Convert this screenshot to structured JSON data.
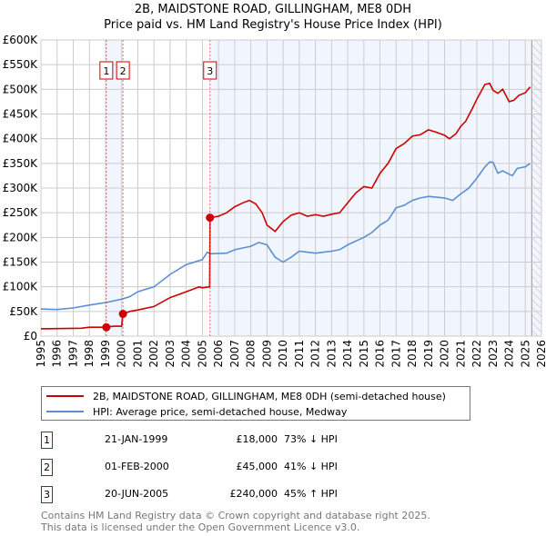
{
  "chart_data": {
    "type": "line",
    "title": "2B, MAIDSTONE ROAD, GILLINGHAM, ME8 0DH",
    "subtitle": "Price paid vs. HM Land Registry's House Price Index (HPI)",
    "xlim": [
      1995,
      2026
    ],
    "ylim": [
      0,
      600000
    ],
    "x_ticks": [
      "1995",
      "1996",
      "1997",
      "1998",
      "1999",
      "2000",
      "2001",
      "2002",
      "2003",
      "2004",
      "2005",
      "2006",
      "2007",
      "2008",
      "2009",
      "2010",
      "2011",
      "2012",
      "2013",
      "2014",
      "2015",
      "2016",
      "2017",
      "2018",
      "2019",
      "2020",
      "2021",
      "2022",
      "2023",
      "2024",
      "2025",
      "2026"
    ],
    "y_ticks": [
      {
        "v": 0,
        "l": "£0"
      },
      {
        "v": 50000,
        "l": "£50K"
      },
      {
        "v": 100000,
        "l": "£100K"
      },
      {
        "v": 150000,
        "l": "£150K"
      },
      {
        "v": 200000,
        "l": "£200K"
      },
      {
        "v": 250000,
        "l": "£250K"
      },
      {
        "v": 300000,
        "l": "£300K"
      },
      {
        "v": 350000,
        "l": "£350K"
      },
      {
        "v": 400000,
        "l": "£400K"
      },
      {
        "v": 450000,
        "l": "£450K"
      },
      {
        "v": 500000,
        "l": "£500K"
      },
      {
        "v": 550000,
        "l": "£550K"
      },
      {
        "v": 600000,
        "l": "£600K"
      }
    ],
    "grid": true,
    "series": [
      {
        "name": "2B, MAIDSTONE ROAD, GILLINGHAM, ME8 0DH (semi-detached house)",
        "color": "#cc0000",
        "x": [
          1995,
          1997.5,
          1998,
          1999.05,
          1999.5,
          2000,
          2000.08,
          2000.5,
          2001,
          2002,
          2003,
          2004,
          2004.8,
          2005,
          2005.45,
          2005.47,
          2006,
          2006.5,
          2007,
          2007.5,
          2007.9,
          2008.3,
          2008.7,
          2009,
          2009.5,
          2010,
          2010.5,
          2011,
          2011.5,
          2012,
          2012.5,
          2013,
          2013.5,
          2014,
          2014.5,
          2015,
          2015.5,
          2016,
          2016.5,
          2017,
          2017.5,
          2018,
          2018.5,
          2019,
          2019.5,
          2020,
          2020.3,
          2020.7,
          2021,
          2021.3,
          2021.7,
          2022,
          2022.5,
          2022.8,
          2023,
          2023.3,
          2023.6,
          2024,
          2024.3,
          2024.6,
          2025,
          2025.3
        ],
        "y": [
          15000,
          16000,
          18000,
          18000,
          20000,
          20000,
          45000,
          50000,
          53000,
          60000,
          78000,
          90000,
          100000,
          98000,
          100000,
          240000,
          243000,
          250000,
          262000,
          270000,
          275000,
          268000,
          250000,
          225000,
          212000,
          232000,
          245000,
          250000,
          243000,
          246000,
          243000,
          247000,
          250000,
          270000,
          290000,
          303000,
          300000,
          330000,
          350000,
          380000,
          390000,
          405000,
          408000,
          418000,
          413000,
          407000,
          400000,
          410000,
          425000,
          435000,
          460000,
          480000,
          510000,
          512000,
          498000,
          492000,
          500000,
          475000,
          478000,
          488000,
          493000,
          505000
        ]
      },
      {
        "name": "HPI: Average price, semi-detached house, Medway",
        "color": "#5b8fd4",
        "x": [
          1995,
          1996,
          1997,
          1998,
          1999,
          2000,
          2000.5,
          2001,
          2002,
          2003,
          2004,
          2005,
          2005.3,
          2005.5,
          2006.5,
          2007,
          2008,
          2008.5,
          2009,
          2009.5,
          2010,
          2010.5,
          2011,
          2011.5,
          2012,
          2012.5,
          2013,
          2013.5,
          2014,
          2015,
          2015.5,
          2016,
          2016.5,
          2017,
          2017.5,
          2018,
          2018.5,
          2019,
          2020,
          2020.5,
          2021,
          2021.5,
          2022,
          2022.5,
          2022.8,
          2023,
          2023.3,
          2023.6,
          2024,
          2024.2,
          2024.5,
          2025,
          2025.3
        ],
        "y": [
          55000,
          54000,
          57000,
          63000,
          68000,
          75000,
          80000,
          90000,
          100000,
          125000,
          145000,
          155000,
          170000,
          167000,
          168000,
          175000,
          182000,
          190000,
          185000,
          160000,
          150000,
          160000,
          172000,
          170000,
          168000,
          170000,
          172000,
          175000,
          185000,
          200000,
          210000,
          225000,
          235000,
          260000,
          265000,
          275000,
          280000,
          283000,
          280000,
          275000,
          288000,
          300000,
          320000,
          343000,
          353000,
          352000,
          330000,
          335000,
          328000,
          325000,
          340000,
          343000,
          350000
        ]
      }
    ],
    "sales": [
      {
        "n": "1",
        "x": 1999.05,
        "y": 18000,
        "date": "21-JAN-1999",
        "price": "£18,000",
        "hpi": "73% ↓ HPI"
      },
      {
        "n": "2",
        "x": 2000.08,
        "y": 45000,
        "date": "01-FEB-2000",
        "price": "£45,000",
        "hpi": "41% ↓ HPI"
      },
      {
        "n": "3",
        "x": 2005.47,
        "y": 240000,
        "date": "20-JUN-2005",
        "price": "£240,000",
        "hpi": "45% ↑ HPI"
      }
    ],
    "shaded": [
      [
        1999.05,
        2000.08
      ],
      [
        2005.47,
        2026
      ]
    ],
    "future_hatch_from": 2025.4,
    "legend_position": "bottom"
  },
  "footer": {
    "line1": "Contains HM Land Registry data © Crown copyright and database right 2025.",
    "line2": "This data is licensed under the Open Government Licence v3.0."
  }
}
